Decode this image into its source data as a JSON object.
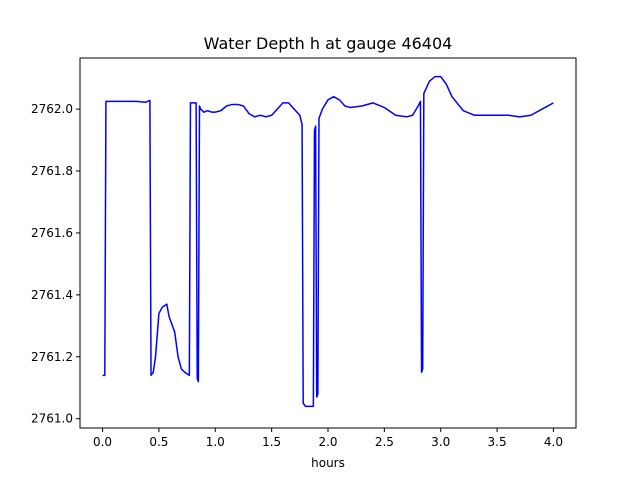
{
  "chart_data": {
    "type": "line",
    "title": "Water Depth h at gauge 46404",
    "xlabel": "hours",
    "ylabel": "",
    "xlim": [
      -0.2,
      4.2
    ],
    "ylim": [
      2760.97,
      2762.165
    ],
    "xticks": [
      0.0,
      0.5,
      1.0,
      1.5,
      2.0,
      2.5,
      3.0,
      3.5,
      4.0
    ],
    "xtick_labels": [
      "0.0",
      "0.5",
      "1.0",
      "1.5",
      "2.0",
      "2.5",
      "3.0",
      "3.5",
      "4.0"
    ],
    "yticks": [
      2761.0,
      2761.2,
      2761.4,
      2761.6,
      2761.8,
      2762.0
    ],
    "ytick_labels": [
      "2761.0",
      "2761.2",
      "2761.4",
      "2761.6",
      "2761.8",
      "2762.0"
    ],
    "grid": false,
    "series": [
      {
        "color": "#0000ff",
        "x": [
          0.0,
          0.02,
          0.03,
          0.1,
          0.2,
          0.3,
          0.38,
          0.42,
          0.43,
          0.45,
          0.47,
          0.5,
          0.53,
          0.57,
          0.59,
          0.61,
          0.64,
          0.67,
          0.7,
          0.73,
          0.77,
          0.78,
          0.79,
          0.83,
          0.84,
          0.85,
          0.86,
          0.87,
          0.9,
          0.93,
          0.97,
          1.0,
          1.05,
          1.1,
          1.15,
          1.2,
          1.25,
          1.3,
          1.35,
          1.4,
          1.45,
          1.5,
          1.55,
          1.6,
          1.65,
          1.7,
          1.75,
          1.77,
          1.78,
          1.8,
          1.84,
          1.87,
          1.88,
          1.89,
          1.9,
          1.91,
          1.92,
          1.95,
          2.0,
          2.05,
          2.1,
          2.15,
          2.2,
          2.3,
          2.4,
          2.5,
          2.6,
          2.7,
          2.75,
          2.8,
          2.82,
          2.83,
          2.84,
          2.85,
          2.9,
          2.95,
          3.0,
          3.05,
          3.1,
          3.2,
          3.3,
          3.4,
          3.5,
          3.6,
          3.7,
          3.8,
          3.9,
          4.0
        ],
        "y": [
          2761.14,
          2761.14,
          2762.025,
          2762.025,
          2762.025,
          2762.025,
          2762.022,
          2762.028,
          2761.14,
          2761.15,
          2761.2,
          2761.34,
          2761.36,
          2761.37,
          2761.33,
          2761.31,
          2761.28,
          2761.2,
          2761.16,
          2761.15,
          2761.14,
          2762.02,
          2762.02,
          2762.02,
          2761.13,
          2761.12,
          2762.01,
          2762.0,
          2761.99,
          2761.995,
          2761.99,
          2761.99,
          2761.995,
          2762.01,
          2762.015,
          2762.015,
          2762.01,
          2761.985,
          2761.975,
          2761.98,
          2761.975,
          2761.98,
          2762.0,
          2762.02,
          2762.02,
          2762.0,
          2761.98,
          2761.95,
          2761.05,
          2761.04,
          2761.04,
          2761.04,
          2761.93,
          2761.945,
          2761.07,
          2761.08,
          2761.97,
          2762.0,
          2762.03,
          2762.04,
          2762.03,
          2762.01,
          2762.005,
          2762.01,
          2762.02,
          2762.005,
          2761.98,
          2761.975,
          2761.98,
          2762.01,
          2762.025,
          2761.15,
          2761.16,
          2762.05,
          2762.09,
          2762.105,
          2762.105,
          2762.08,
          2762.04,
          2761.995,
          2761.98,
          2761.98,
          2761.98,
          2761.98,
          2761.975,
          2761.98,
          2762.0,
          2762.02
        ]
      }
    ]
  }
}
